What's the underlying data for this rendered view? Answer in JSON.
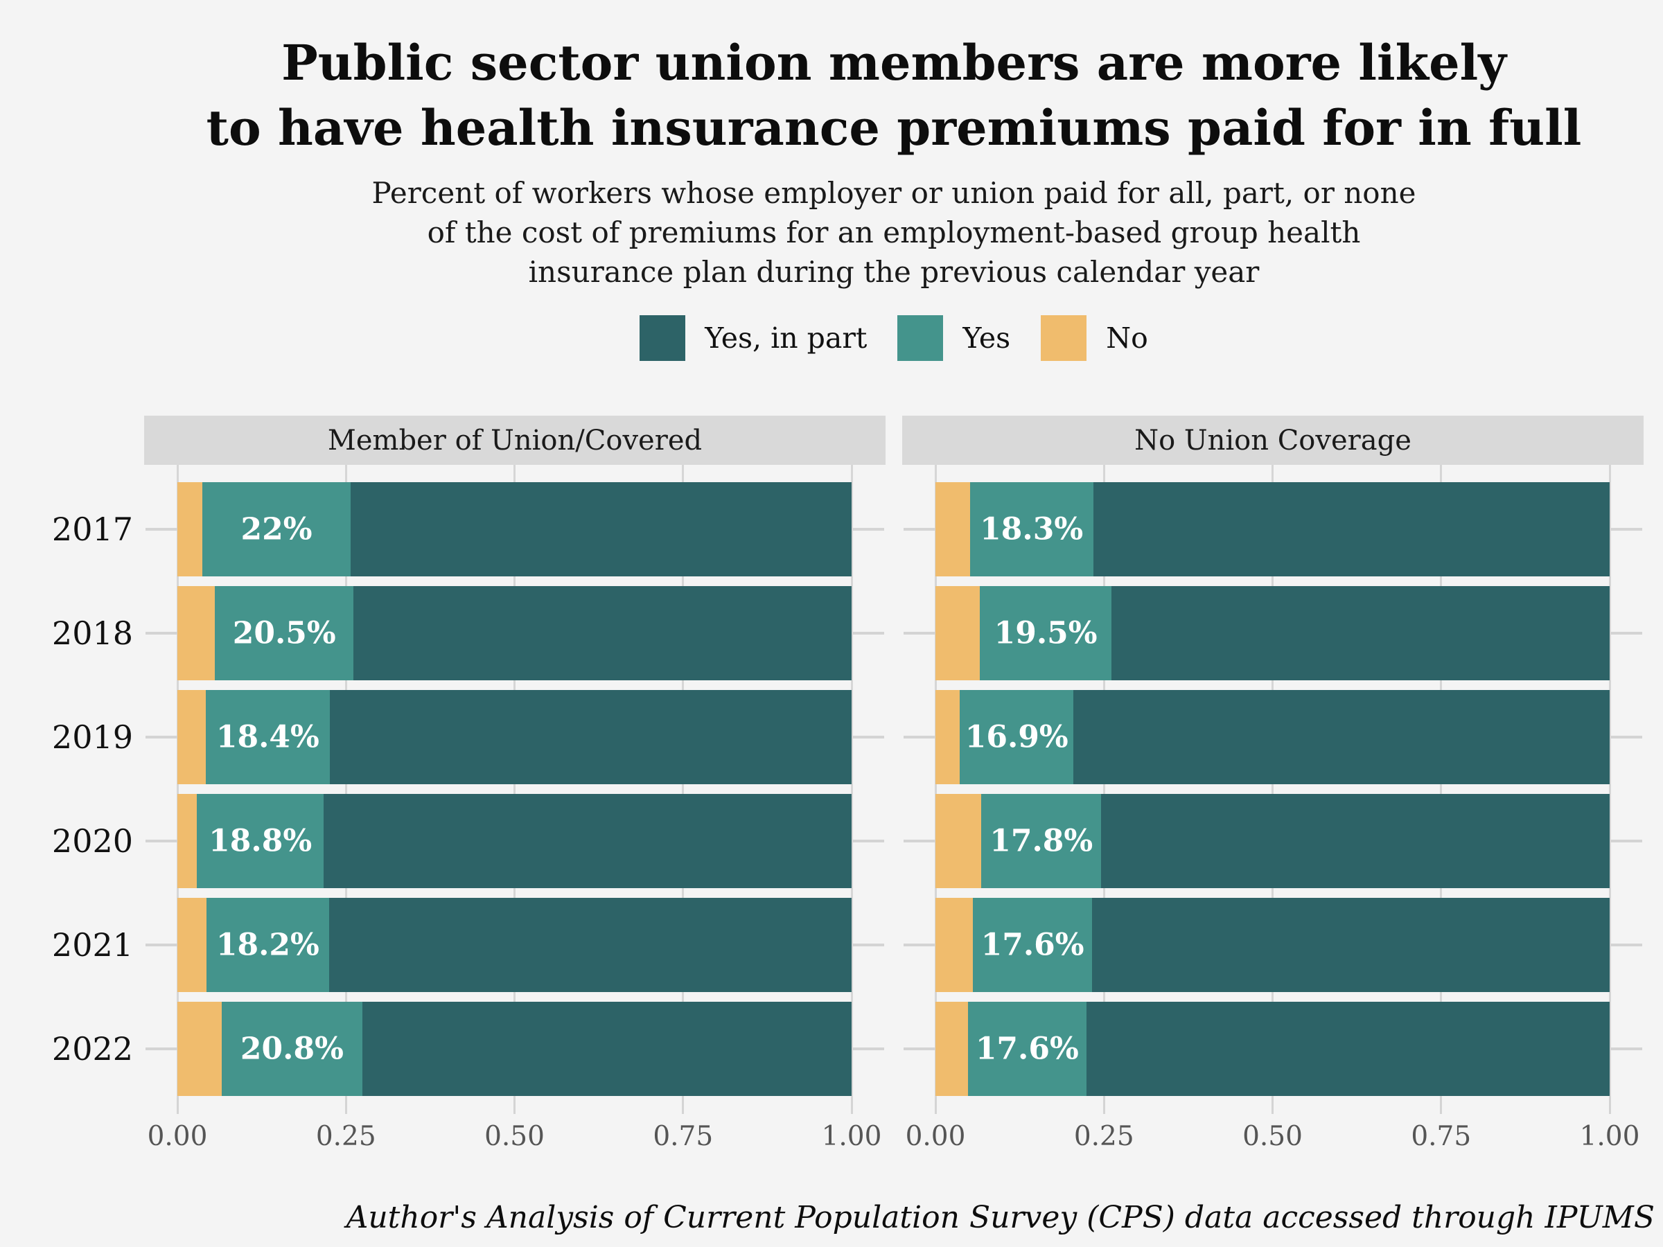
{
  "title": {
    "line1": "Public sector union members are more likely",
    "line2": "to have health insurance premiums paid for in full"
  },
  "subtitle": {
    "line1": "Percent of workers whose employer or union paid for all, part, or none",
    "line2": "of the cost of premiums for an employment-based group health",
    "line3": "insurance plan during the previous calendar year"
  },
  "legend": [
    {
      "label": "Yes, in part",
      "color": "#2d6367"
    },
    {
      "label": "Yes",
      "color": "#44948c"
    },
    {
      "label": "No",
      "color": "#f0bc6d"
    }
  ],
  "caption": "Author's Analysis of Current Population Survey (CPS) data accessed through IPUMS",
  "colors": {
    "background": "#f4f4f4",
    "panel_strip": "#d9d9d9",
    "gridline": "#d6d6d6",
    "tick": "#d4d4d4",
    "axis_text": "#555555",
    "yes_in_part": "#2d6367",
    "yes": "#44948c",
    "no": "#f0bc6d",
    "bar_label": "#ffffff"
  },
  "chart_data": {
    "type": "bar",
    "orientation": "horizontal",
    "stacked": true,
    "grid": "vertical-major",
    "legend_position": "top",
    "xlim": [
      0,
      1
    ],
    "x_ticks": [
      "0.00",
      "0.25",
      "0.50",
      "0.75",
      "1.00"
    ],
    "x_tick_values": [
      0,
      0.25,
      0.5,
      0.75,
      1.0
    ],
    "categories": [
      "2017",
      "2018",
      "2019",
      "2020",
      "2021",
      "2022"
    ],
    "stack_order": [
      "No",
      "Yes",
      "Yes, in part"
    ],
    "panels": [
      {
        "title": "Member of Union/Covered",
        "series": [
          {
            "name": "No",
            "color": "#f0bc6d",
            "values": [
              0.037,
              0.056,
              0.042,
              0.029,
              0.043,
              0.066
            ]
          },
          {
            "name": "Yes",
            "color": "#44948c",
            "values": [
              0.22,
              0.205,
              0.184,
              0.188,
              0.182,
              0.208
            ],
            "labels": [
              "22%",
              "20.5%",
              "18.4%",
              "18.8%",
              "18.2%",
              "20.8%"
            ]
          },
          {
            "name": "Yes, in part",
            "color": "#2d6367",
            "values": [
              0.743,
              0.739,
              0.774,
              0.783,
              0.775,
              0.726
            ]
          }
        ]
      },
      {
        "title": "No Union Coverage",
        "series": [
          {
            "name": "No",
            "color": "#f0bc6d",
            "values": [
              0.051,
              0.066,
              0.036,
              0.068,
              0.056,
              0.048
            ]
          },
          {
            "name": "Yes",
            "color": "#44948c",
            "values": [
              0.183,
              0.195,
              0.169,
              0.178,
              0.176,
              0.176
            ],
            "labels": [
              "18.3%",
              "19.5%",
              "16.9%",
              "17.8%",
              "17.6%",
              "17.6%"
            ]
          },
          {
            "name": "Yes, in part",
            "color": "#2d6367",
            "values": [
              0.766,
              0.739,
              0.795,
              0.754,
              0.768,
              0.776
            ]
          }
        ]
      }
    ]
  }
}
